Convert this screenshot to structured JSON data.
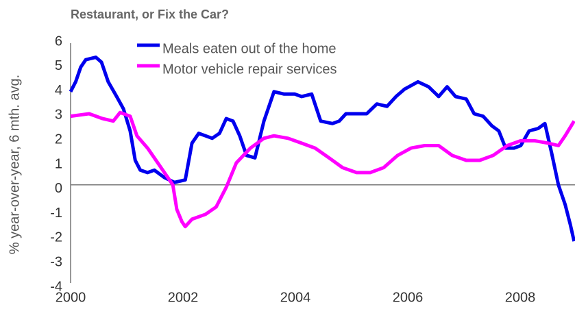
{
  "chart_data": {
    "type": "line",
    "title": "Restaurant, or Fix the Car?",
    "ylabel": "% year-over-year, 6 mth. avg.",
    "xlim": [
      2000,
      2009
    ],
    "xticks": [
      2000,
      2002,
      2004,
      2006,
      2008
    ],
    "ylim": [
      -4,
      6
    ],
    "yticks": [
      -4,
      -3,
      -2,
      -1,
      0,
      1,
      2,
      3,
      4,
      5,
      6
    ],
    "legend": "top",
    "series": [
      {
        "name": "Meals eaten out of the home",
        "color": "#0000ee",
        "x": [
          2000.0,
          2000.09,
          2000.18,
          2000.27,
          2000.45,
          2000.55,
          2000.67,
          2000.82,
          2000.94,
          2001.06,
          2001.15,
          2001.24,
          2001.37,
          2001.49,
          2001.67,
          2001.85,
          2002.04,
          2002.16,
          2002.28,
          2002.4,
          2002.52,
          2002.65,
          2002.77,
          2002.89,
          2003.01,
          2003.13,
          2003.28,
          2003.44,
          2003.62,
          2003.8,
          2003.99,
          2004.11,
          2004.29,
          2004.45,
          2004.66,
          2004.78,
          2004.9,
          2005.09,
          2005.27,
          2005.45,
          2005.63,
          2005.79,
          2005.94,
          2006.18,
          2006.37,
          2006.55,
          2006.7,
          2006.85,
          2007.04,
          2007.18,
          2007.34,
          2007.5,
          2007.62,
          2007.74,
          2007.89,
          2008.01,
          2008.16,
          2008.32,
          2008.44,
          2008.56,
          2008.68,
          2008.8,
          2008.89,
          2008.96
        ],
        "values": [
          3.8,
          4.2,
          4.8,
          5.1,
          5.2,
          5.0,
          4.2,
          3.6,
          3.1,
          2.2,
          1.0,
          0.6,
          0.5,
          0.6,
          0.3,
          0.1,
          0.2,
          1.7,
          2.1,
          2.0,
          1.9,
          2.1,
          2.7,
          2.6,
          2.0,
          1.2,
          1.1,
          2.6,
          3.8,
          3.7,
          3.7,
          3.6,
          3.7,
          2.6,
          2.5,
          2.6,
          2.9,
          2.9,
          2.9,
          3.3,
          3.2,
          3.6,
          3.9,
          4.2,
          4.0,
          3.6,
          4.0,
          3.6,
          3.5,
          2.9,
          2.8,
          2.4,
          2.2,
          1.5,
          1.5,
          1.6,
          2.2,
          2.3,
          2.5,
          1.3,
          0.0,
          -0.8,
          -1.6,
          -2.3
        ]
      },
      {
        "name": "Motor vehicle repair services",
        "color": "#ff00ff",
        "x": [
          2000.0,
          2000.33,
          2000.57,
          2000.76,
          2000.88,
          2001.06,
          2001.18,
          2001.37,
          2001.55,
          2001.73,
          2001.82,
          2001.89,
          2001.98,
          2002.04,
          2002.16,
          2002.4,
          2002.59,
          2002.77,
          2002.95,
          2003.2,
          2003.44,
          2003.62,
          2003.87,
          2004.11,
          2004.35,
          2004.6,
          2004.84,
          2005.09,
          2005.33,
          2005.57,
          2005.82,
          2006.06,
          2006.3,
          2006.55,
          2006.79,
          2007.04,
          2007.28,
          2007.52,
          2007.77,
          2008.01,
          2008.26,
          2008.5,
          2008.68,
          2008.8,
          2008.96
        ],
        "values": [
          2.8,
          2.9,
          2.7,
          2.6,
          2.95,
          2.8,
          2.0,
          1.5,
          0.9,
          0.3,
          0.0,
          -1.0,
          -1.5,
          -1.7,
          -1.4,
          -1.2,
          -0.9,
          -0.1,
          0.9,
          1.5,
          1.9,
          2.0,
          1.9,
          1.7,
          1.5,
          1.1,
          0.7,
          0.5,
          0.5,
          0.7,
          1.2,
          1.5,
          1.6,
          1.6,
          1.2,
          1.0,
          1.0,
          1.2,
          1.6,
          1.8,
          1.8,
          1.7,
          1.6,
          2.0,
          2.6
        ]
      }
    ]
  }
}
